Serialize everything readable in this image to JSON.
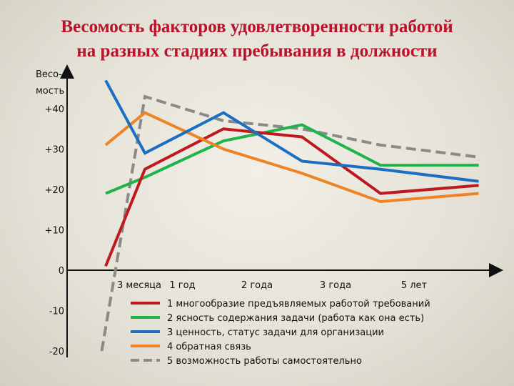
{
  "title_line1": "Весомость факторов удовлетворенности работой",
  "title_line2": "на разных стадиях пребывания в должности",
  "chart_data": {
    "type": "line",
    "ylabel_line1": "Весо-",
    "ylabel_line2": "мость",
    "ylim": [
      -20,
      45
    ],
    "y_ticks": [
      {
        "value": 40,
        "label": "+40"
      },
      {
        "value": 30,
        "label": "+30"
      },
      {
        "value": 20,
        "label": "+20"
      },
      {
        "value": 10,
        "label": "+10"
      },
      {
        "value": 0,
        "label": "0"
      },
      {
        "value": -10,
        "label": "-10"
      },
      {
        "value": -20,
        "label": "-20"
      }
    ],
    "categories": [
      "3 месяца",
      "1 год",
      "2 года",
      "3 года",
      "5 лет"
    ],
    "x_positions": [
      0,
      1,
      2,
      3,
      4,
      5,
      6,
      7,
      8,
      9,
      10
    ],
    "x_tick_labels": [
      {
        "x": 1,
        "label": "3 месяца"
      },
      {
        "x": 2.1,
        "label": "1 год"
      },
      {
        "x": 4,
        "label": "2 года"
      },
      {
        "x": 6,
        "label": "3 года"
      },
      {
        "x": 8,
        "label": "5 лет"
      }
    ],
    "series": [
      {
        "name": "1 многообразие предъявляемых работой требований",
        "color": "#c0181f",
        "dash": false,
        "points": [
          [
            0,
            1
          ],
          [
            1,
            25
          ],
          [
            3,
            35
          ],
          [
            5,
            33
          ],
          [
            7,
            19
          ],
          [
            9.5,
            21
          ]
        ]
      },
      {
        "name": "2 ясность содержания задачи (работа как она есть)",
        "color": "#1fb34a",
        "dash": false,
        "points": [
          [
            0,
            19
          ],
          [
            1,
            23
          ],
          [
            3,
            32
          ],
          [
            5,
            36
          ],
          [
            7,
            26
          ],
          [
            9.5,
            26
          ]
        ]
      },
      {
        "name": "3 ценность, статус задачи для организации",
        "color": "#1a6fc2",
        "dash": false,
        "points": [
          [
            0,
            47
          ],
          [
            1,
            29
          ],
          [
            3,
            39
          ],
          [
            5,
            27
          ],
          [
            7,
            25
          ],
          [
            9.5,
            22
          ]
        ]
      },
      {
        "name": "4 обратная связь",
        "color": "#ef8424",
        "dash": false,
        "points": [
          [
            0,
            31
          ],
          [
            1,
            39
          ],
          [
            3,
            30
          ],
          [
            5,
            24
          ],
          [
            7,
            17
          ],
          [
            9.5,
            19
          ]
        ]
      },
      {
        "name": "5 возможность работы самостоятельно",
        "color": "#8a8a8a",
        "dash": true,
        "points": [
          [
            -0.1,
            -20
          ],
          [
            1,
            43
          ],
          [
            3,
            37
          ],
          [
            5,
            35
          ],
          [
            7,
            31
          ],
          [
            9.5,
            28
          ]
        ]
      }
    ]
  }
}
